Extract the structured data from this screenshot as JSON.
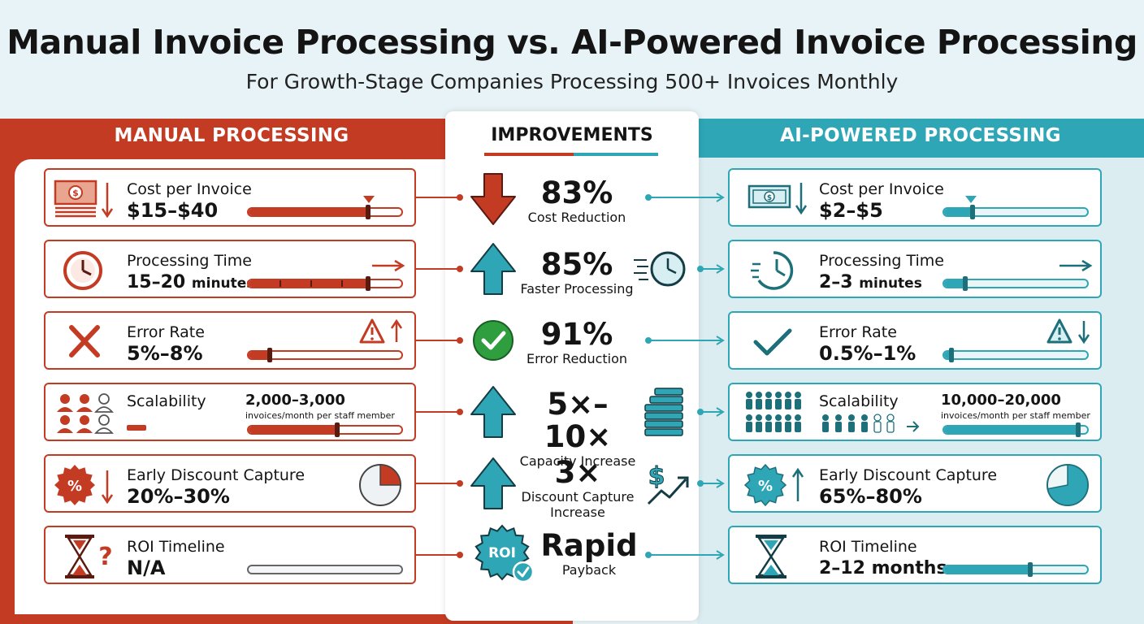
{
  "header": {
    "title": "Manual Invoice Processing vs. AI-Powered Invoice Processing",
    "subtitle": "For Growth-Stage Companies Processing 500+ Invoices Monthly"
  },
  "columns": {
    "manual": "MANUAL PROCESSING",
    "improvements": "IMPROVEMENTS",
    "ai": "AI-POWERED PROCESSING"
  },
  "colors": {
    "manual": "#c43b24",
    "ai": "#2fa6b5",
    "positive": "#2e9e3e"
  },
  "metrics": [
    {
      "label": "Cost per Invoice",
      "icon_manual": "money-stack-down-icon",
      "icon_ai": "money-bill-down-icon",
      "manual": {
        "value": "$15–$40",
        "bar_fill": 0.78
      },
      "ai": {
        "value": "$2–$5",
        "bar_fill": 0.2
      },
      "improvement": {
        "value": "83%",
        "label": "Cost Reduction",
        "icon": "arrow-down-icon"
      }
    },
    {
      "label": "Processing Time",
      "icon_manual": "clock-icon",
      "icon_ai": "fast-clock-icon",
      "manual": {
        "value": "15–20",
        "unit": "minutes",
        "bar_fill": 0.78
      },
      "ai": {
        "value": "2–3",
        "unit": "minutes",
        "bar_fill": 0.15
      },
      "improvement": {
        "value": "85%",
        "label": "Faster Processing",
        "icon": "arrow-up-icon"
      }
    },
    {
      "label": "Error Rate",
      "icon_manual": "x-mark-icon",
      "icon_ai": "check-mark-icon",
      "manual": {
        "value": "5%–8%",
        "bar_fill": 0.14
      },
      "ai": {
        "value": "0.5%–1%",
        "bar_fill": 0.05
      },
      "improvement": {
        "value": "91%",
        "label": "Error Reduction",
        "icon": "check-circle-icon"
      }
    },
    {
      "label": "Scalability",
      "icon_manual": "team-icon",
      "icon_ai": "large-team-icon",
      "manual": {
        "value": "2,000–3,000",
        "note": "invoices/month per staff member",
        "bar_fill": 0.58
      },
      "ai": {
        "value": "10,000–20,000",
        "note": "invoices/month per staff member",
        "bar_fill": 0.94
      },
      "improvement": {
        "value": "5×–10×",
        "label": "Capacity Increase",
        "icon": "arrow-up-icon"
      }
    },
    {
      "label": "Early Discount Capture",
      "icon_manual": "percent-badge-icon",
      "icon_ai": "percent-badge-icon",
      "manual": {
        "value": "20%–30%",
        "pie": 0.25
      },
      "ai": {
        "value": "65%–80%",
        "pie": 0.72
      },
      "improvement": {
        "value": "3×",
        "label_lines": [
          "Discount Capture",
          "Increase"
        ],
        "icon": "arrow-up-icon"
      }
    },
    {
      "label": "ROI Timeline",
      "icon_manual": "hourglass-question-icon",
      "icon_ai": "hourglass-icon",
      "manual": {
        "value": "N/A",
        "bar_fill": 0
      },
      "ai": {
        "value": "2–12 months",
        "bar_fill": 0.6
      },
      "improvement": {
        "value": "Rapid",
        "label": "Payback",
        "icon": "roi-badge-icon",
        "badge_text": "ROI"
      }
    }
  ]
}
